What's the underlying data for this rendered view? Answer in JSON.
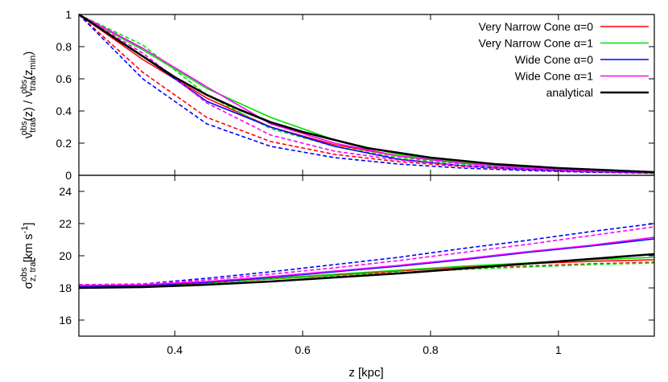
{
  "chart_data": [
    {
      "type": "line",
      "panel": "top",
      "xlabel": "",
      "ylabel_main": "ν",
      "ylabel_sub": "trac",
      "ylabel_sup": "obs",
      "ylabel_mid": "(z)  /  ν",
      "ylabel_sub2": "trac",
      "ylabel_sup2": "obs",
      "ylabel_end": "(z",
      "ylabel_sub3": "min",
      "ylabel_close": ")",
      "xlim": [
        0.25,
        1.15
      ],
      "ylim": [
        0,
        1
      ],
      "yticks": [
        0,
        0.2,
        0.4,
        0.6,
        0.8,
        1
      ],
      "ytick_labels": [
        "0",
        "0.2",
        "0.4",
        "0.6",
        "0.8",
        "1"
      ],
      "legend_position": "top-right",
      "series": [
        {
          "name": "Very Narrow Cone α=0",
          "color": "#ff0000",
          "dash": false,
          "x": [
            0.25,
            0.35,
            0.45,
            0.55,
            0.65,
            0.75,
            0.85,
            0.95,
            1.05,
            1.15
          ],
          "y": [
            1.0,
            0.72,
            0.48,
            0.3,
            0.19,
            0.12,
            0.075,
            0.045,
            0.028,
            0.018
          ]
        },
        {
          "name": "Very Narrow Cone α=0",
          "color": "#ff0000",
          "dash": true,
          "x": [
            0.25,
            0.35,
            0.45,
            0.55,
            0.65,
            0.75,
            0.85,
            0.95,
            1.05,
            1.15
          ],
          "y": [
            1.0,
            0.64,
            0.36,
            0.21,
            0.13,
            0.085,
            0.055,
            0.035,
            0.022,
            0.015
          ]
        },
        {
          "name": "Very Narrow Cone α=1",
          "color": "#00e000",
          "dash": false,
          "x": [
            0.25,
            0.35,
            0.45,
            0.55,
            0.65,
            0.75,
            0.85,
            0.95,
            1.05,
            1.15
          ],
          "y": [
            1.0,
            0.78,
            0.54,
            0.36,
            0.22,
            0.13,
            0.08,
            0.05,
            0.03,
            0.02
          ]
        },
        {
          "name": "Very Narrow Cone α=1",
          "color": "#00e000",
          "dash": true,
          "x": [
            0.25,
            0.35,
            0.45,
            0.55,
            0.65,
            0.75,
            0.85,
            0.95,
            1.05,
            1.15
          ],
          "y": [
            1.0,
            0.81,
            0.5,
            0.29,
            0.18,
            0.11,
            0.07,
            0.043,
            0.027,
            0.017
          ]
        },
        {
          "name": "Wide Cone α=0",
          "color": "#0000ff",
          "dash": false,
          "x": [
            0.25,
            0.35,
            0.45,
            0.55,
            0.65,
            0.75,
            0.85,
            0.95,
            1.05,
            1.15
          ],
          "y": [
            1.0,
            0.74,
            0.46,
            0.3,
            0.18,
            0.1,
            0.06,
            0.038,
            0.024,
            0.015
          ]
        },
        {
          "name": "Wide Cone α=0",
          "color": "#0000ff",
          "dash": true,
          "x": [
            0.25,
            0.35,
            0.45,
            0.55,
            0.65,
            0.75,
            0.85,
            0.95,
            1.05,
            1.15
          ],
          "y": [
            1.0,
            0.6,
            0.32,
            0.18,
            0.11,
            0.07,
            0.045,
            0.03,
            0.019,
            0.013
          ]
        },
        {
          "name": "Wide Cone α=1",
          "color": "#ff00ff",
          "dash": false,
          "x": [
            0.25,
            0.35,
            0.45,
            0.55,
            0.65,
            0.75,
            0.85,
            0.95,
            1.05,
            1.15
          ],
          "y": [
            1.0,
            0.79,
            0.55,
            0.32,
            0.2,
            0.12,
            0.075,
            0.045,
            0.028,
            0.018
          ]
        },
        {
          "name": "Wide Cone α=1",
          "color": "#ff00ff",
          "dash": true,
          "x": [
            0.25,
            0.35,
            0.45,
            0.55,
            0.65,
            0.75,
            0.85,
            0.95,
            1.05,
            1.15
          ],
          "y": [
            1.0,
            0.76,
            0.45,
            0.25,
            0.15,
            0.095,
            0.06,
            0.038,
            0.024,
            0.016
          ]
        },
        {
          "name": "analytical",
          "color": "#000000",
          "dash": false,
          "width": 2.6,
          "x": [
            0.25,
            0.3,
            0.35,
            0.4,
            0.45,
            0.5,
            0.55,
            0.6,
            0.65,
            0.7,
            0.8,
            0.9,
            1.0,
            1.1,
            1.15
          ],
          "y": [
            1.0,
            0.87,
            0.74,
            0.61,
            0.5,
            0.41,
            0.33,
            0.27,
            0.22,
            0.17,
            0.11,
            0.07,
            0.045,
            0.028,
            0.02
          ]
        }
      ],
      "legend": [
        {
          "label": "Very Narrow Cone α=0",
          "color": "#ff0000",
          "width": 1.6
        },
        {
          "label": "Very Narrow Cone α=1",
          "color": "#00e000",
          "width": 1.6
        },
        {
          "label": "Wide Cone α=0",
          "color": "#0000ff",
          "width": 1.6
        },
        {
          "label": "Wide Cone α=1",
          "color": "#ff00ff",
          "width": 1.6
        },
        {
          "label": "analytical",
          "color": "#000000",
          "width": 2.6
        }
      ]
    },
    {
      "type": "line",
      "panel": "bottom",
      "xlabel": "z [kpc]",
      "ylabel_main": "σ",
      "ylabel_sub": "z, trac",
      "ylabel_sup": "obs",
      "ylabel_unit": "[km s",
      "ylabel_unit_sup": "-1",
      "ylabel_unit_close": "]",
      "xlim": [
        0.25,
        1.15
      ],
      "ylim": [
        15,
        25
      ],
      "xticks": [
        0.4,
        0.6,
        0.8,
        1
      ],
      "xtick_labels": [
        "0.4",
        "0.6",
        "0.8",
        "1"
      ],
      "yticks": [
        16,
        18,
        20,
        22,
        24
      ],
      "ytick_labels": [
        "16",
        "18",
        "20",
        "22",
        "24"
      ],
      "series": [
        {
          "name": "Very Narrow Cone α=0",
          "color": "#ff0000",
          "dash": false,
          "x": [
            0.25,
            0.35,
            0.45,
            0.55,
            0.65,
            0.75,
            0.85,
            0.95,
            1.05,
            1.15
          ],
          "y": [
            18.1,
            18.12,
            18.3,
            18.55,
            18.8,
            19.05,
            19.3,
            19.5,
            19.65,
            19.75
          ]
        },
        {
          "name": "Very Narrow Cone α=0",
          "color": "#ff0000",
          "dash": true,
          "x": [
            0.25,
            0.35,
            0.45,
            0.55,
            0.65,
            0.75,
            0.85,
            0.95,
            1.05,
            1.15
          ],
          "y": [
            18.2,
            18.2,
            18.35,
            18.6,
            18.8,
            18.95,
            19.15,
            19.35,
            19.5,
            19.6
          ]
        },
        {
          "name": "Very Narrow Cone α=1",
          "color": "#00e000",
          "dash": false,
          "x": [
            0.25,
            0.35,
            0.45,
            0.55,
            0.65,
            0.75,
            0.85,
            0.95,
            1.05,
            1.15
          ],
          "y": [
            18.15,
            18.18,
            18.35,
            18.6,
            18.85,
            19.1,
            19.35,
            19.55,
            19.75,
            19.9
          ]
        },
        {
          "name": "Very Narrow Cone α=1",
          "color": "#00e000",
          "dash": true,
          "x": [
            0.25,
            0.35,
            0.45,
            0.55,
            0.65,
            0.75,
            0.85,
            0.95,
            1.05,
            1.15
          ],
          "y": [
            18.15,
            18.15,
            18.3,
            18.55,
            18.75,
            18.95,
            19.15,
            19.3,
            19.45,
            19.55
          ]
        },
        {
          "name": "Wide Cone α=0",
          "color": "#0000ff",
          "dash": false,
          "x": [
            0.25,
            0.35,
            0.45,
            0.55,
            0.65,
            0.75,
            0.85,
            0.95,
            1.05,
            1.15
          ],
          "y": [
            18.1,
            18.15,
            18.35,
            18.65,
            19.0,
            19.35,
            19.75,
            20.2,
            20.6,
            21.05
          ]
        },
        {
          "name": "Wide Cone α=0",
          "color": "#0000ff",
          "dash": true,
          "x": [
            0.25,
            0.35,
            0.45,
            0.55,
            0.65,
            0.75,
            0.85,
            0.95,
            1.05,
            1.15
          ],
          "y": [
            18.15,
            18.25,
            18.6,
            19.0,
            19.45,
            19.9,
            20.45,
            20.95,
            21.5,
            22.0
          ]
        },
        {
          "name": "Wide Cone α=1",
          "color": "#ff00ff",
          "dash": false,
          "x": [
            0.25,
            0.35,
            0.45,
            0.55,
            0.65,
            0.75,
            0.85,
            0.95,
            1.05,
            1.15
          ],
          "y": [
            18.15,
            18.2,
            18.4,
            18.7,
            19.05,
            19.4,
            19.8,
            20.25,
            20.65,
            21.15
          ]
        },
        {
          "name": "Wide Cone α=1",
          "color": "#ff00ff",
          "dash": true,
          "x": [
            0.25,
            0.35,
            0.45,
            0.55,
            0.65,
            0.75,
            0.85,
            0.95,
            1.05,
            1.15
          ],
          "y": [
            18.2,
            18.25,
            18.5,
            18.85,
            19.25,
            19.7,
            20.2,
            20.7,
            21.25,
            21.8
          ]
        },
        {
          "name": "analytical",
          "color": "#000000",
          "dash": false,
          "width": 2.6,
          "x": [
            0.25,
            0.35,
            0.45,
            0.55,
            0.65,
            0.75,
            0.85,
            0.95,
            1.05,
            1.15
          ],
          "y": [
            18.0,
            18.05,
            18.2,
            18.4,
            18.65,
            18.9,
            19.2,
            19.5,
            19.8,
            20.1
          ]
        }
      ]
    }
  ]
}
